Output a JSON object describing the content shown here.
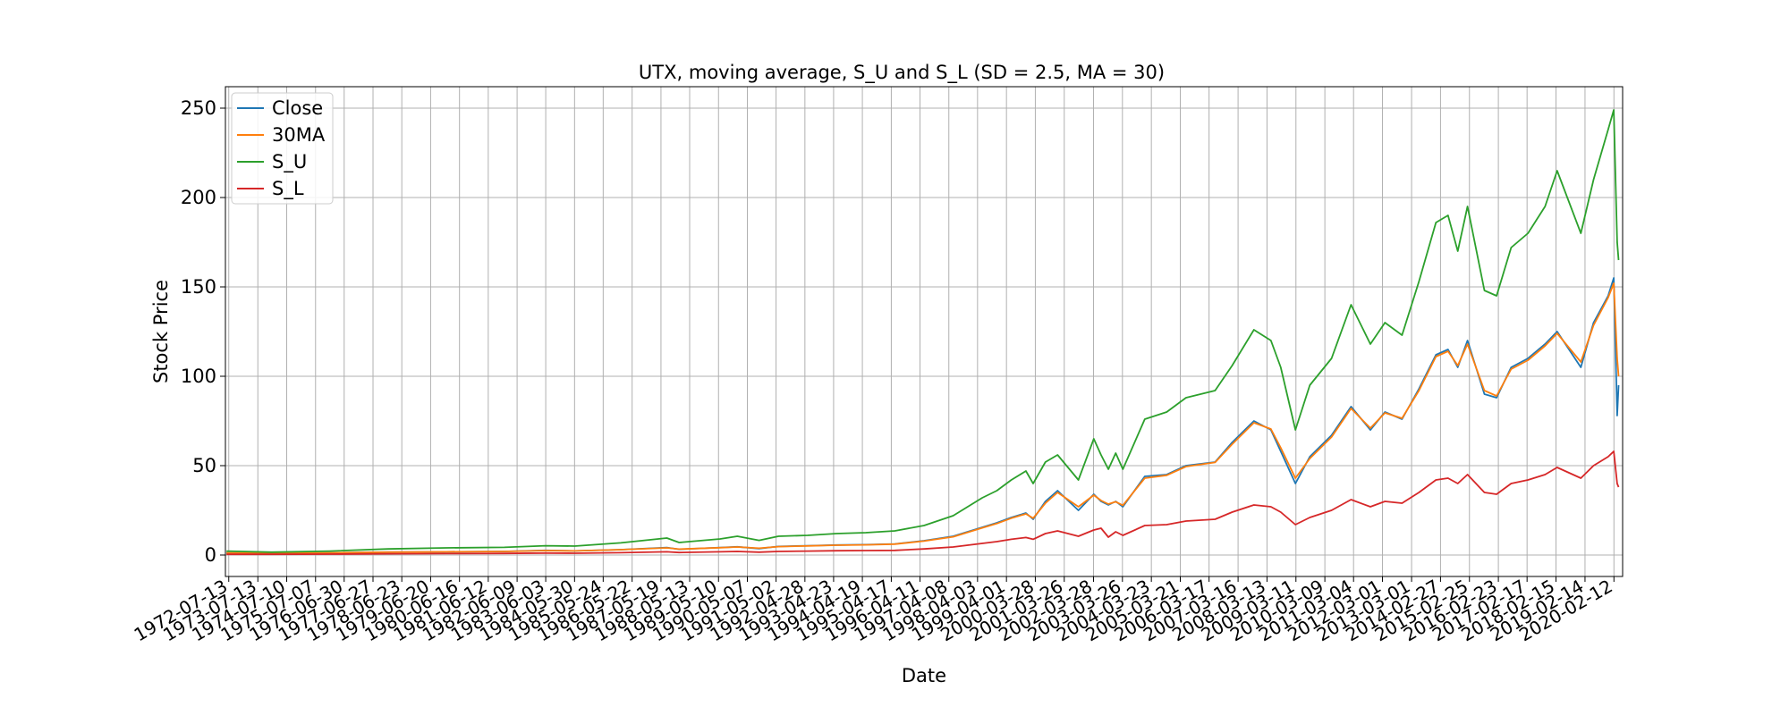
{
  "chart_data": {
    "type": "line",
    "title": "UTX, moving average, S_U and S_L (SD = 2.5, MA = 30)",
    "xlabel": "Date",
    "ylabel": "Stock Price",
    "x_start": "1972-06-01",
    "x_end": "2020-05-31",
    "ylim": [
      -12,
      262
    ],
    "yticks": [
      0,
      50,
      100,
      150,
      200,
      250
    ],
    "xticks": [
      "1972-07-13",
      "1973-07-13",
      "1974-07-10",
      "1975-07-07",
      "1976-06-30",
      "1977-06-27",
      "1978-06-23",
      "1979-06-20",
      "1980-06-16",
      "1981-06-12",
      "1982-06-09",
      "1983-06-03",
      "1984-05-30",
      "1985-05-24",
      "1986-05-22",
      "1987-05-19",
      "1988-05-13",
      "1989-05-10",
      "1990-05-07",
      "1991-05-02",
      "1992-04-28",
      "1993-04-23",
      "1994-04-19",
      "1995-04-17",
      "1996-04-11",
      "1997-04-08",
      "1998-04-03",
      "1999-04-01",
      "2000-03-28",
      "2001-03-26",
      "2002-03-28",
      "2003-03-26",
      "2004-03-23",
      "2005-03-21",
      "2006-03-17",
      "2007-03-16",
      "2008-03-13",
      "2009-03-11",
      "2010-03-09",
      "2011-03-04",
      "2012-03-01",
      "2013-03-01",
      "2014-02-27",
      "2015-02-25",
      "2016-02-23",
      "2017-02-17",
      "2018-02-15",
      "2019-02-14",
      "2020-02-12"
    ],
    "grid": true,
    "legend_position": "top-left",
    "series": [
      {
        "name": "Close",
        "color": "#1f77b4",
        "points": [
          [
            "1972-06-15",
            1.2
          ],
          [
            "1974-01-01",
            1.0
          ],
          [
            "1976-01-01",
            1.2
          ],
          [
            "1978-01-01",
            1.6
          ],
          [
            "1980-01-01",
            1.8
          ],
          [
            "1982-01-01",
            2.0
          ],
          [
            "1983-06-01",
            2.6
          ],
          [
            "1984-06-01",
            2.3
          ],
          [
            "1986-01-01",
            3.0
          ],
          [
            "1987-08-01",
            4.2
          ],
          [
            "1988-01-01",
            3.2
          ],
          [
            "1989-06-01",
            4.2
          ],
          [
            "1990-01-01",
            4.6
          ],
          [
            "1990-10-01",
            3.6
          ],
          [
            "1991-06-01",
            4.8
          ],
          [
            "1992-06-01",
            5.2
          ],
          [
            "1993-06-01",
            5.6
          ],
          [
            "1994-06-01",
            5.8
          ],
          [
            "1995-06-01",
            6.2
          ],
          [
            "1996-06-01",
            8.0
          ],
          [
            "1997-06-01",
            10.5
          ],
          [
            "1998-06-01",
            15.5
          ],
          [
            "1998-12-01",
            18.0
          ],
          [
            "1999-06-01",
            21.0
          ],
          [
            "1999-12-01",
            23.5
          ],
          [
            "2000-03-01",
            20.0
          ],
          [
            "2000-08-01",
            30.0
          ],
          [
            "2001-01-01",
            36.0
          ],
          [
            "2001-09-20",
            25.0
          ],
          [
            "2002-04-01",
            34.0
          ],
          [
            "2002-07-01",
            30.0
          ],
          [
            "2002-10-01",
            28.0
          ],
          [
            "2003-01-01",
            30.0
          ],
          [
            "2003-04-01",
            27.0
          ],
          [
            "2004-01-01",
            44.0
          ],
          [
            "2004-10-01",
            45.0
          ],
          [
            "2005-06-01",
            50.0
          ],
          [
            "2006-06-01",
            52.0
          ],
          [
            "2007-01-01",
            63.0
          ],
          [
            "2007-10-01",
            75.0
          ],
          [
            "2008-05-01",
            70.0
          ],
          [
            "2008-09-01",
            58.0
          ],
          [
            "2009-03-05",
            40.0
          ],
          [
            "2009-09-01",
            55.0
          ],
          [
            "2010-06-01",
            67.0
          ],
          [
            "2011-02-01",
            83.0
          ],
          [
            "2011-10-01",
            70.0
          ],
          [
            "2012-04-01",
            80.0
          ],
          [
            "2012-11-01",
            76.0
          ],
          [
            "2013-06-01",
            93.0
          ],
          [
            "2014-01-01",
            112.0
          ],
          [
            "2014-06-01",
            115.0
          ],
          [
            "2014-10-01",
            105.0
          ],
          [
            "2015-02-01",
            120.0
          ],
          [
            "2015-09-01",
            90.0
          ],
          [
            "2016-02-01",
            88.0
          ],
          [
            "2016-08-01",
            105.0
          ],
          [
            "2017-03-01",
            110.0
          ],
          [
            "2017-10-01",
            118.0
          ],
          [
            "2018-03-01",
            125.0
          ],
          [
            "2018-12-24",
            105.0
          ],
          [
            "2019-06-01",
            130.0
          ],
          [
            "2019-12-01",
            145.0
          ],
          [
            "2020-02-10",
            155.0
          ],
          [
            "2020-03-23",
            78.0
          ],
          [
            "2020-04-10",
            95.0
          ]
        ]
      },
      {
        "name": "30MA",
        "color": "#ff7f0e",
        "points": [
          [
            "1972-06-15",
            1.2
          ],
          [
            "1974-01-01",
            1.0
          ],
          [
            "1976-01-01",
            1.2
          ],
          [
            "1978-01-01",
            1.6
          ],
          [
            "1980-01-01",
            1.8
          ],
          [
            "1982-01-01",
            2.0
          ],
          [
            "1983-06-01",
            2.5
          ],
          [
            "1984-06-01",
            2.3
          ],
          [
            "1986-01-01",
            3.0
          ],
          [
            "1987-08-01",
            4.0
          ],
          [
            "1988-01-01",
            3.3
          ],
          [
            "1989-06-01",
            4.1
          ],
          [
            "1990-01-01",
            4.5
          ],
          [
            "1990-10-01",
            3.8
          ],
          [
            "1991-06-01",
            4.7
          ],
          [
            "1992-06-01",
            5.1
          ],
          [
            "1993-06-01",
            5.5
          ],
          [
            "1994-06-01",
            5.7
          ],
          [
            "1995-06-01",
            6.1
          ],
          [
            "1996-06-01",
            7.8
          ],
          [
            "1997-06-01",
            10.2
          ],
          [
            "1998-06-01",
            15.2
          ],
          [
            "1998-12-01",
            17.6
          ],
          [
            "1999-06-01",
            20.6
          ],
          [
            "1999-12-01",
            23.0
          ],
          [
            "2000-03-01",
            20.6
          ],
          [
            "2000-08-01",
            29.0
          ],
          [
            "2001-01-01",
            35.0
          ],
          [
            "2001-09-20",
            27.0
          ],
          [
            "2002-04-01",
            33.5
          ],
          [
            "2002-07-01",
            30.5
          ],
          [
            "2002-10-01",
            28.5
          ],
          [
            "2003-01-01",
            29.8
          ],
          [
            "2003-04-01",
            27.8
          ],
          [
            "2004-01-01",
            43.0
          ],
          [
            "2004-10-01",
            44.6
          ],
          [
            "2005-06-01",
            49.5
          ],
          [
            "2006-06-01",
            51.8
          ],
          [
            "2007-01-01",
            62.0
          ],
          [
            "2007-10-01",
            74.0
          ],
          [
            "2008-05-01",
            70.5
          ],
          [
            "2008-09-01",
            60.0
          ],
          [
            "2009-03-05",
            43.0
          ],
          [
            "2009-09-01",
            54.0
          ],
          [
            "2010-06-01",
            66.0
          ],
          [
            "2011-02-01",
            82.0
          ],
          [
            "2011-10-01",
            71.0
          ],
          [
            "2012-04-01",
            79.5
          ],
          [
            "2012-11-01",
            76.5
          ],
          [
            "2013-06-01",
            92.0
          ],
          [
            "2014-01-01",
            111.0
          ],
          [
            "2014-06-01",
            114.0
          ],
          [
            "2014-10-01",
            106.0
          ],
          [
            "2015-02-01",
            118.0
          ],
          [
            "2015-09-01",
            92.0
          ],
          [
            "2016-02-01",
            89.0
          ],
          [
            "2016-08-01",
            104.0
          ],
          [
            "2017-03-01",
            109.0
          ],
          [
            "2017-10-01",
            117.0
          ],
          [
            "2018-03-01",
            124.0
          ],
          [
            "2018-12-24",
            108.0
          ],
          [
            "2019-06-01",
            128.5
          ],
          [
            "2019-12-01",
            144.0
          ],
          [
            "2020-02-10",
            152.0
          ],
          [
            "2020-03-23",
            110.0
          ],
          [
            "2020-04-10",
            100.0
          ]
        ]
      },
      {
        "name": "S_U",
        "color": "#2ca02c",
        "points": [
          [
            "1972-06-15",
            2.2
          ],
          [
            "1974-01-01",
            1.6
          ],
          [
            "1976-01-01",
            2.2
          ],
          [
            "1978-01-01",
            3.4
          ],
          [
            "1980-01-01",
            4.0
          ],
          [
            "1982-01-01",
            4.3
          ],
          [
            "1983-06-01",
            5.2
          ],
          [
            "1984-06-01",
            5.0
          ],
          [
            "1986-01-01",
            6.8
          ],
          [
            "1987-08-01",
            9.5
          ],
          [
            "1988-01-01",
            7.0
          ],
          [
            "1989-06-01",
            9.0
          ],
          [
            "1990-01-01",
            10.5
          ],
          [
            "1990-10-01",
            8.2
          ],
          [
            "1991-06-01",
            10.5
          ],
          [
            "1992-06-01",
            11.0
          ],
          [
            "1993-06-01",
            12.0
          ],
          [
            "1994-06-01",
            12.5
          ],
          [
            "1995-06-01",
            13.5
          ],
          [
            "1996-06-01",
            16.5
          ],
          [
            "1997-06-01",
            22.0
          ],
          [
            "1998-06-01",
            32.0
          ],
          [
            "1998-12-01",
            36.0
          ],
          [
            "1999-06-01",
            42.0
          ],
          [
            "1999-12-01",
            47.0
          ],
          [
            "2000-03-01",
            40.0
          ],
          [
            "2000-08-01",
            52.0
          ],
          [
            "2001-01-01",
            56.0
          ],
          [
            "2001-09-20",
            42.0
          ],
          [
            "2002-04-01",
            65.0
          ],
          [
            "2002-07-01",
            56.0
          ],
          [
            "2002-10-01",
            48.0
          ],
          [
            "2003-01-01",
            57.0
          ],
          [
            "2003-04-01",
            48.0
          ],
          [
            "2004-01-01",
            76.0
          ],
          [
            "2004-10-01",
            80.0
          ],
          [
            "2005-06-01",
            88.0
          ],
          [
            "2006-06-01",
            92.0
          ],
          [
            "2007-01-01",
            106.0
          ],
          [
            "2007-10-01",
            126.0
          ],
          [
            "2008-05-01",
            120.0
          ],
          [
            "2008-09-01",
            105.0
          ],
          [
            "2009-03-05",
            70.0
          ],
          [
            "2009-09-01",
            95.0
          ],
          [
            "2010-06-01",
            110.0
          ],
          [
            "2011-02-01",
            140.0
          ],
          [
            "2011-10-01",
            118.0
          ],
          [
            "2012-04-01",
            130.0
          ],
          [
            "2012-11-01",
            123.0
          ],
          [
            "2013-06-01",
            153.0
          ],
          [
            "2014-01-01",
            186.0
          ],
          [
            "2014-06-01",
            190.0
          ],
          [
            "2014-10-01",
            170.0
          ],
          [
            "2015-02-01",
            195.0
          ],
          [
            "2015-09-01",
            148.0
          ],
          [
            "2016-02-01",
            145.0
          ],
          [
            "2016-08-01",
            172.0
          ],
          [
            "2017-03-01",
            180.0
          ],
          [
            "2017-10-01",
            195.0
          ],
          [
            "2018-03-01",
            215.0
          ],
          [
            "2018-12-24",
            180.0
          ],
          [
            "2019-06-01",
            210.0
          ],
          [
            "2019-12-01",
            238.0
          ],
          [
            "2020-02-10",
            249.0
          ],
          [
            "2020-03-23",
            175.0
          ],
          [
            "2020-04-10",
            165.0
          ]
        ]
      },
      {
        "name": "S_L",
        "color": "#d62728",
        "points": [
          [
            "1972-06-15",
            0.4
          ],
          [
            "1974-01-01",
            0.4
          ],
          [
            "1976-01-01",
            0.5
          ],
          [
            "1978-01-01",
            0.7
          ],
          [
            "1980-01-01",
            0.8
          ],
          [
            "1982-01-01",
            0.9
          ],
          [
            "1983-06-01",
            1.1
          ],
          [
            "1984-06-01",
            1.0
          ],
          [
            "1986-01-01",
            1.3
          ],
          [
            "1987-08-01",
            1.8
          ],
          [
            "1988-01-01",
            1.4
          ],
          [
            "1989-06-01",
            1.8
          ],
          [
            "1990-01-01",
            2.0
          ],
          [
            "1990-10-01",
            1.6
          ],
          [
            "1991-06-01",
            2.0
          ],
          [
            "1992-06-01",
            2.2
          ],
          [
            "1993-06-01",
            2.4
          ],
          [
            "1994-06-01",
            2.5
          ],
          [
            "1995-06-01",
            2.6
          ],
          [
            "1996-06-01",
            3.4
          ],
          [
            "1997-06-01",
            4.5
          ],
          [
            "1998-06-01",
            6.5
          ],
          [
            "1998-12-01",
            7.5
          ],
          [
            "1999-06-01",
            8.8
          ],
          [
            "1999-12-01",
            9.8
          ],
          [
            "2000-03-01",
            8.8
          ],
          [
            "2000-08-01",
            12.0
          ],
          [
            "2001-01-01",
            13.5
          ],
          [
            "2001-09-20",
            10.5
          ],
          [
            "2002-04-01",
            14.0
          ],
          [
            "2002-07-01",
            15.0
          ],
          [
            "2002-10-01",
            10.0
          ],
          [
            "2003-01-01",
            13.0
          ],
          [
            "2003-04-01",
            11.0
          ],
          [
            "2004-01-01",
            16.5
          ],
          [
            "2004-10-01",
            17.0
          ],
          [
            "2005-06-01",
            19.0
          ],
          [
            "2006-06-01",
            20.0
          ],
          [
            "2007-01-01",
            24.0
          ],
          [
            "2007-10-01",
            28.0
          ],
          [
            "2008-05-01",
            27.0
          ],
          [
            "2008-09-01",
            24.0
          ],
          [
            "2009-03-05",
            17.0
          ],
          [
            "2009-09-01",
            21.0
          ],
          [
            "2010-06-01",
            25.0
          ],
          [
            "2011-02-01",
            31.0
          ],
          [
            "2011-10-01",
            27.0
          ],
          [
            "2012-04-01",
            30.0
          ],
          [
            "2012-11-01",
            29.0
          ],
          [
            "2013-06-01",
            35.0
          ],
          [
            "2014-01-01",
            42.0
          ],
          [
            "2014-06-01",
            43.0
          ],
          [
            "2014-10-01",
            40.0
          ],
          [
            "2015-02-01",
            45.0
          ],
          [
            "2015-09-01",
            35.0
          ],
          [
            "2016-02-01",
            34.0
          ],
          [
            "2016-08-01",
            40.0
          ],
          [
            "2017-03-01",
            42.0
          ],
          [
            "2017-10-01",
            45.0
          ],
          [
            "2018-03-01",
            49.0
          ],
          [
            "2018-12-24",
            43.0
          ],
          [
            "2019-06-01",
            50.0
          ],
          [
            "2019-12-01",
            55.0
          ],
          [
            "2020-02-10",
            58.0
          ],
          [
            "2020-03-23",
            40.0
          ],
          [
            "2020-04-10",
            38.0
          ]
        ]
      }
    ]
  }
}
